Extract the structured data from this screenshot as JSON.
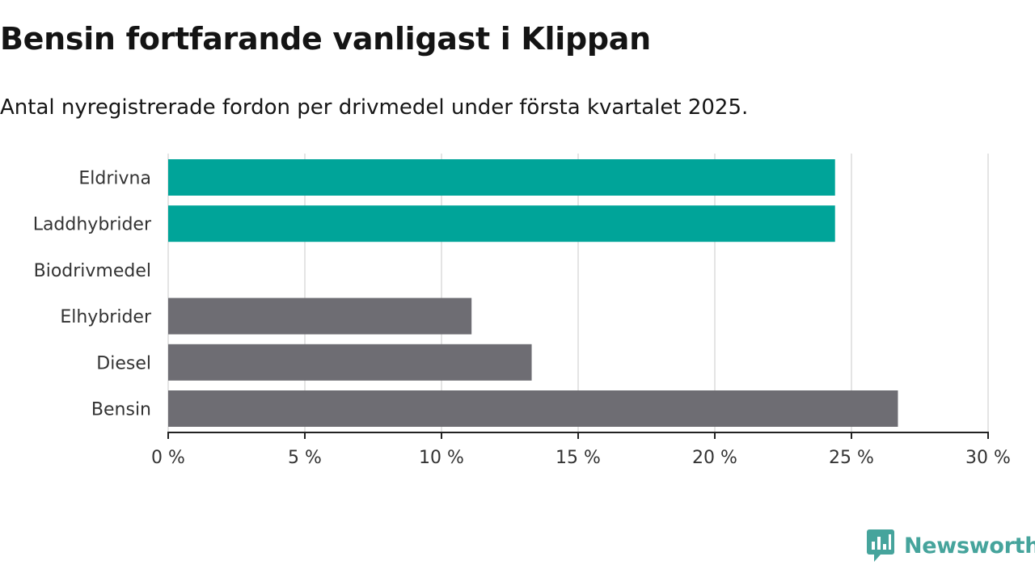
{
  "title": "Bensin fortfarande vanligast i Klippan",
  "subtitle": "Antal nyregistrerade fordon per drivmedel under första kvartalet 2025.",
  "brand": {
    "name": "Newsworthy",
    "icon": "newsworthy-logo-icon"
  },
  "chart_data": {
    "type": "bar",
    "orientation": "horizontal",
    "categories": [
      "Eldrivna",
      "Laddhybrider",
      "Biodrivmedel",
      "Elhybrider",
      "Diesel",
      "Bensin"
    ],
    "values": [
      24.4,
      24.4,
      0,
      11.1,
      13.3,
      26.7
    ],
    "colors": [
      "#00a499",
      "#00a499",
      "#6e6d73",
      "#6e6d73",
      "#6e6d73",
      "#6e6d73"
    ],
    "xlim": [
      0,
      30
    ],
    "xticks": [
      0,
      5,
      10,
      15,
      20,
      25,
      30
    ],
    "xtick_labels": [
      "0 %",
      "5 %",
      "10 %",
      "15 %",
      "20 %",
      "25 %",
      "30 %"
    ],
    "grid": "vertical",
    "legend": "none"
  }
}
